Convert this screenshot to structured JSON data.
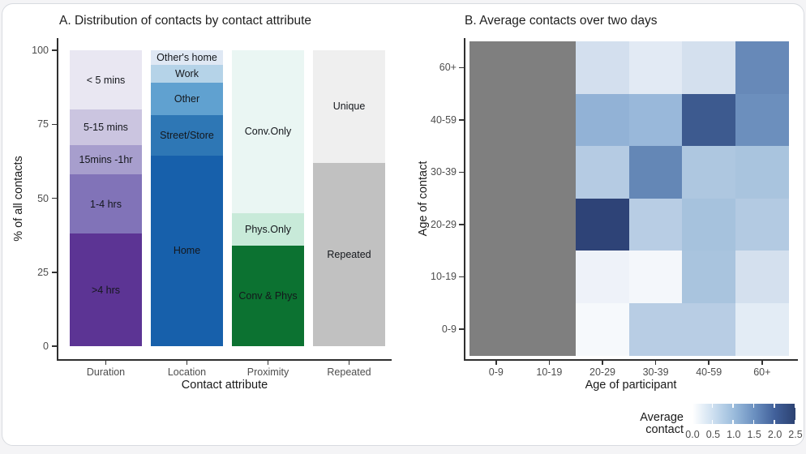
{
  "chart_data": [
    {
      "type": "bar",
      "stacked": true,
      "title": "A. Distribution of contacts by contact attribute",
      "xlabel": "Contact attribute",
      "ylabel": "% of all contacts",
      "ylim": [
        0,
        100
      ],
      "yticks": [
        "0",
        "25",
        "50",
        "75",
        "100"
      ],
      "categories": [
        "Duration",
        "Location",
        "Proximity",
        "Repeated"
      ],
      "bars": [
        {
          "category": "Duration",
          "segments": [
            {
              "label": ">4 hrs",
              "value": 38,
              "color": "#5c3494"
            },
            {
              "label": "1-4 hrs",
              "value": 20,
              "color": "#8173b8"
            },
            {
              "label": "15mins -1hr",
              "value": 10,
              "color": "#a79ecd"
            },
            {
              "label": "5-15 mins",
              "value": 12,
              "color": "#cbc5e0"
            },
            {
              "label": "< 5 mins",
              "value": 20,
              "color": "#e9e7f2"
            }
          ]
        },
        {
          "category": "Location",
          "segments": [
            {
              "label": "Home",
              "value": 64.5,
              "color": "#1760ab"
            },
            {
              "label": "Street/Store",
              "value": 13.5,
              "color": "#2e77b5"
            },
            {
              "label": "Other",
              "value": 11,
              "color": "#60a1d0"
            },
            {
              "label": "Work",
              "value": 6,
              "color": "#b5d3e8"
            },
            {
              "label": "Other's home",
              "value": 5,
              "color": "#dfe8f4"
            }
          ]
        },
        {
          "category": "Proximity",
          "segments": [
            {
              "label": "Conv & Phys",
              "value": 34,
              "color": "#0c7231"
            },
            {
              "label": "Phys.Only",
              "value": 11,
              "color": "#c8ead9"
            },
            {
              "label": "Conv.Only",
              "value": 55,
              "color": "#eaf6f3"
            }
          ]
        },
        {
          "category": "Repeated",
          "segments": [
            {
              "label": "Repeated",
              "value": 62,
              "color": "#c1c1c1"
            },
            {
              "label": "Unique",
              "value": 38,
              "color": "#efefef"
            }
          ]
        }
      ]
    },
    {
      "type": "heatmap",
      "title": "B. Average contacts over two days",
      "xlabel": "Age of participant",
      "ylabel": "Age of contact",
      "x_categories": [
        "0-9",
        "10-19",
        "20-29",
        "30-39",
        "40-59",
        "60+"
      ],
      "y_categories": [
        "60+",
        "40-59",
        "30-39",
        "20-29",
        "10-19",
        "0-9"
      ],
      "na_color": "#7f7f7f",
      "rows": [
        {
          "y": "60+",
          "values": [
            null,
            null,
            0.45,
            0.3,
            0.45,
            1.55
          ],
          "colors": [
            null,
            null,
            "#d3dfee",
            "#e2eaf4",
            "#d4e0ee",
            "#6789b8"
          ]
        },
        {
          "y": "40-59",
          "values": [
            null,
            null,
            1.0,
            0.95,
            2.2,
            1.5
          ],
          "colors": [
            null,
            null,
            "#92b2d6",
            "#99b8da",
            "#3d5a8f",
            "#6c8fbd"
          ]
        },
        {
          "y": "30-39",
          "values": [
            null,
            null,
            0.7,
            1.6,
            0.75,
            0.8
          ],
          "colors": [
            null,
            null,
            "#b5cbe3",
            "#6487b6",
            "#aec7e0",
            "#a9c4de"
          ]
        },
        {
          "y": "20-29",
          "values": [
            null,
            null,
            2.45,
            0.65,
            0.8,
            0.7
          ],
          "colors": [
            null,
            null,
            "#2e4377",
            "#b8cde4",
            "#a6c2dd",
            "#b3cae2"
          ]
        },
        {
          "y": "10-19",
          "values": [
            null,
            null,
            0.15,
            0.1,
            0.8,
            0.4
          ],
          "colors": [
            null,
            null,
            "#eef2f9",
            "#f4f7fb",
            "#a9c4de",
            "#d4e0ee"
          ]
        },
        {
          "y": "0-9",
          "values": [
            null,
            null,
            0.1,
            0.85,
            0.85,
            0.25
          ],
          "colors": [
            null,
            null,
            "#f6f9fc",
            "#b8cde4",
            "#b8cde4",
            "#e3ecf5"
          ]
        }
      ],
      "legend": {
        "title_lines": [
          "Average",
          "contact"
        ],
        "min": 0.0,
        "max": 2.5,
        "ticks": [
          "0.0",
          "0.5",
          "1.0",
          "1.5",
          "2.0",
          "2.5"
        ],
        "gradient": [
          "#ffffff",
          "#cddff0",
          "#9bbcdc",
          "#6b90c0",
          "#41609a",
          "#2c4271"
        ]
      }
    }
  ]
}
